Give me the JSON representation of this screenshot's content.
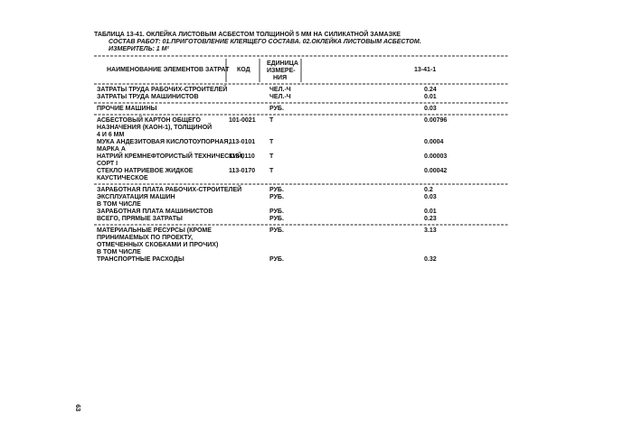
{
  "header": {
    "title": "ТАБЛИЦА 13-41. ОКЛЕЙКА ЛИСТОВЫМ АСБЕСТОМ ТОЛЩИНОЙ 5 ММ НА СИЛИКАТНОЙ ЗАМАЗКЕ",
    "composition": "СОСТАВ РАБОТ: 01.ПРИГОТОВЛЕНИЕ КЛЕЯЩЕГО СОСТАВА. 02.ОКЛЕЙКА ЛИСТОВЫМ АСБЕСТОМ.",
    "meter": "ИЗМЕРИТЕЛЬ: 1 М²"
  },
  "table": {
    "columns": {
      "name": "НАИМЕНОВАНИЕ ЭЛЕМЕНТОВ ЗАТРАТ",
      "code": "КОД",
      "unit": [
        "ЕДИНИЦА",
        "ИЗМЕРЕ-",
        "НИЯ"
      ],
      "value": "13-41-1"
    },
    "sections": [
      [
        {
          "name": [
            "ЗАТРАТЫ ТРУДА РАБОЧИХ-СТРОИТЕЛЕЙ"
          ],
          "unit": "ЧЕЛ.-Ч",
          "value": "0.24"
        },
        {
          "name": [
            "ЗАТРАТЫ ТРУДА МАШИНИСТОВ"
          ],
          "unit": "ЧЕЛ.-Ч",
          "value": "0.01"
        }
      ],
      [
        {
          "name": [
            "ПРОЧИЕ МАШИНЫ"
          ],
          "unit": "РУБ.",
          "value": "0.03"
        }
      ],
      [
        {
          "name": [
            "АСБЕСТОВЫЙ КАРТОН ОБЩЕГО",
            "НАЗНАЧЕНИЯ (КАОН-1), ТОЛЩИНОЙ",
            "4 И 6 ММ"
          ],
          "code": "101-0021",
          "unit": "Т",
          "value": "0.00796"
        },
        {
          "name": [
            "МУКА АНДЕЗИТОВАЯ КИСЛОТОУПОРНАЯ,",
            "МАРКА А"
          ],
          "code": "113-0101",
          "unit": "Т",
          "value": "0.0004"
        },
        {
          "name": [
            "НАТРИЙ КРЕМНЕФТОРИСТЫЙ ТЕХНИЧЕСКИЙ,",
            "СОРТ I"
          ],
          "code": "113-0110",
          "unit": "Т",
          "value": "0.00003"
        },
        {
          "name": [
            "СТЕКЛО НАТРИЕВОЕ ЖИДКОЕ",
            "КАУСТИЧЕСКОЕ"
          ],
          "code": "113-0170",
          "unit": "Т",
          "value": "0.00042"
        }
      ],
      [
        {
          "name": [
            "ЗАРАБОТНАЯ ПЛАТА РАБОЧИХ-СТРОИТЕЛЕЙ"
          ],
          "unit": "РУБ.",
          "value": "0.2"
        },
        {
          "name": [
            "ЭКСПЛУАТАЦИЯ МАШИН"
          ],
          "unit": "РУБ.",
          "value": "0.03"
        },
        {
          "name": [
            "В ТОМ ЧИСЛЕ"
          ]
        },
        {
          "name": [
            "ЗАРАБОТНАЯ ПЛАТА МАШИНИСТОВ"
          ],
          "unit": "РУБ.",
          "value": "0.01"
        },
        {
          "name": [
            "ВСЕГО, ПРЯМЫЕ ЗАТРАТЫ"
          ],
          "unit": "РУБ.",
          "value": "0.23"
        }
      ],
      [
        {
          "name": [
            "МАТЕРИАЛЬНЫЕ РЕСУРСЫ (КРОМЕ",
            "ПРИНИМАЕМЫХ ПО ПРОЕКТУ,",
            "ОТМЕЧЕННЫХ СКОБКАМИ И ПРОЧИХ)"
          ],
          "unit": "РУБ.",
          "value": "3.13"
        },
        {
          "name": [
            "В ТОМ ЧИСЛЕ"
          ]
        },
        {
          "name": [
            "ТРАНСПОРТНЫЕ РАСХОДЫ"
          ],
          "unit": "РУБ.",
          "value": "0.32"
        }
      ]
    ]
  },
  "page_number": "63"
}
